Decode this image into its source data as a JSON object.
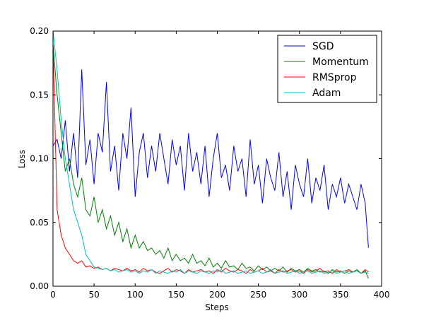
{
  "chart_data": {
    "type": "line",
    "title": "",
    "xlabel": "Steps",
    "ylabel": "Loss",
    "xlim": [
      0,
      400
    ],
    "ylim": [
      0.0,
      0.2
    ],
    "x_ticks": [
      "0",
      "50",
      "100",
      "150",
      "200",
      "250",
      "300",
      "350",
      "400"
    ],
    "y_ticks": [
      "0.00",
      "0.05",
      "0.10",
      "0.15",
      "0.20"
    ],
    "grid": false,
    "legend_position": "top-right",
    "x_step": 5,
    "series": [
      {
        "name": "SGD",
        "color": "#0000ff",
        "x": [
          0,
          5,
          10,
          15,
          20,
          25,
          30,
          35,
          40,
          45,
          50,
          55,
          60,
          65,
          70,
          75,
          80,
          85,
          90,
          95,
          100,
          105,
          110,
          115,
          120,
          125,
          130,
          135,
          140,
          145,
          150,
          155,
          160,
          165,
          170,
          175,
          180,
          185,
          190,
          195,
          200,
          205,
          210,
          215,
          220,
          225,
          230,
          235,
          240,
          245,
          250,
          255,
          260,
          265,
          270,
          275,
          280,
          285,
          290,
          295,
          300,
          305,
          310,
          315,
          320,
          325,
          330,
          335,
          340,
          345,
          350,
          355,
          360,
          365,
          370,
          375,
          380,
          384
        ],
        "values": [
          0.11,
          0.115,
          0.1,
          0.13,
          0.09,
          0.12,
          0.085,
          0.17,
          0.095,
          0.115,
          0.08,
          0.12,
          0.105,
          0.16,
          0.09,
          0.11,
          0.075,
          0.12,
          0.1,
          0.14,
          0.07,
          0.105,
          0.12,
          0.085,
          0.11,
          0.09,
          0.12,
          0.1,
          0.08,
          0.115,
          0.095,
          0.11,
          0.075,
          0.12,
          0.09,
          0.105,
          0.08,
          0.11,
          0.07,
          0.1,
          0.12,
          0.085,
          0.095,
          0.075,
          0.11,
          0.09,
          0.1,
          0.07,
          0.115,
          0.08,
          0.095,
          0.065,
          0.1,
          0.085,
          0.075,
          0.105,
          0.07,
          0.09,
          0.06,
          0.095,
          0.08,
          0.07,
          0.1,
          0.065,
          0.085,
          0.075,
          0.095,
          0.06,
          0.08,
          0.07,
          0.085,
          0.065,
          0.08,
          0.07,
          0.06,
          0.08,
          0.065,
          0.03
        ]
      },
      {
        "name": "Momentum",
        "color": "#008000",
        "x": [
          0,
          5,
          10,
          15,
          20,
          25,
          30,
          35,
          40,
          45,
          50,
          55,
          60,
          65,
          70,
          75,
          80,
          85,
          90,
          95,
          100,
          105,
          110,
          115,
          120,
          125,
          130,
          135,
          140,
          145,
          150,
          155,
          160,
          165,
          170,
          175,
          180,
          185,
          190,
          195,
          200,
          205,
          210,
          215,
          220,
          225,
          230,
          235,
          240,
          245,
          250,
          255,
          260,
          265,
          270,
          275,
          280,
          285,
          290,
          295,
          300,
          305,
          310,
          315,
          320,
          325,
          330,
          335,
          340,
          345,
          350,
          355,
          360,
          365,
          370,
          375,
          380,
          384
        ],
        "values": [
          0.19,
          0.15,
          0.12,
          0.09,
          0.1,
          0.08,
          0.07,
          0.085,
          0.06,
          0.055,
          0.07,
          0.05,
          0.06,
          0.045,
          0.055,
          0.04,
          0.05,
          0.035,
          0.045,
          0.03,
          0.04,
          0.03,
          0.035,
          0.028,
          0.03,
          0.025,
          0.028,
          0.022,
          0.03,
          0.02,
          0.025,
          0.02,
          0.022,
          0.018,
          0.025,
          0.018,
          0.02,
          0.016,
          0.022,
          0.015,
          0.018,
          0.014,
          0.02,
          0.015,
          0.016,
          0.013,
          0.018,
          0.014,
          0.015,
          0.012,
          0.016,
          0.013,
          0.015,
          0.012,
          0.014,
          0.012,
          0.015,
          0.011,
          0.014,
          0.012,
          0.013,
          0.011,
          0.014,
          0.012,
          0.013,
          0.011,
          0.012,
          0.01,
          0.013,
          0.011,
          0.012,
          0.01,
          0.012,
          0.011,
          0.013,
          0.01,
          0.012,
          0.006
        ]
      },
      {
        "name": "RMSprop",
        "color": "#ff0000",
        "x": [
          0,
          5,
          10,
          15,
          20,
          25,
          30,
          35,
          40,
          45,
          50,
          55,
          60,
          65,
          70,
          75,
          80,
          85,
          90,
          95,
          100,
          105,
          110,
          115,
          120,
          125,
          130,
          135,
          140,
          145,
          150,
          155,
          160,
          165,
          170,
          175,
          180,
          185,
          190,
          195,
          200,
          205,
          210,
          215,
          220,
          225,
          230,
          235,
          240,
          245,
          250,
          255,
          260,
          265,
          270,
          275,
          280,
          285,
          290,
          295,
          300,
          305,
          310,
          315,
          320,
          325,
          330,
          335,
          340,
          345,
          350,
          355,
          360,
          365,
          370,
          375,
          380,
          384
        ],
        "values": [
          0.19,
          0.06,
          0.04,
          0.03,
          0.025,
          0.02,
          0.018,
          0.02,
          0.015,
          0.016,
          0.014,
          0.015,
          0.013,
          0.014,
          0.012,
          0.014,
          0.013,
          0.012,
          0.014,
          0.012,
          0.013,
          0.011,
          0.014,
          0.012,
          0.013,
          0.011,
          0.01,
          0.012,
          0.014,
          0.011,
          0.013,
          0.012,
          0.01,
          0.013,
          0.011,
          0.012,
          0.013,
          0.011,
          0.012,
          0.01,
          0.013,
          0.011,
          0.014,
          0.012,
          0.011,
          0.013,
          0.012,
          0.01,
          0.013,
          0.011,
          0.012,
          0.014,
          0.011,
          0.012,
          0.01,
          0.013,
          0.011,
          0.012,
          0.013,
          0.011,
          0.012,
          0.01,
          0.013,
          0.011,
          0.012,
          0.014,
          0.011,
          0.012,
          0.01,
          0.013,
          0.011,
          0.012,
          0.013,
          0.011,
          0.012,
          0.01,
          0.013,
          0.011
        ]
      },
      {
        "name": "Adam",
        "color": "#00bfbf",
        "x": [
          0,
          5,
          10,
          15,
          20,
          25,
          30,
          35,
          40,
          45,
          50,
          55,
          60,
          65,
          70,
          75,
          80,
          85,
          90,
          95,
          100,
          105,
          110,
          115,
          120,
          125,
          130,
          135,
          140,
          145,
          150,
          155,
          160,
          165,
          170,
          175,
          180,
          185,
          190,
          195,
          200,
          205,
          210,
          215,
          220,
          225,
          230,
          235,
          240,
          245,
          250,
          255,
          260,
          265,
          270,
          275,
          280,
          285,
          290,
          295,
          300,
          305,
          310,
          315,
          320,
          325,
          330,
          335,
          340,
          345,
          350,
          355,
          360,
          365,
          370,
          375,
          380,
          384
        ],
        "values": [
          0.2,
          0.17,
          0.13,
          0.1,
          0.08,
          0.06,
          0.05,
          0.04,
          0.025,
          0.02,
          0.015,
          0.014,
          0.013,
          0.014,
          0.012,
          0.013,
          0.011,
          0.012,
          0.013,
          0.011,
          0.012,
          0.01,
          0.012,
          0.011,
          0.013,
          0.01,
          0.012,
          0.011,
          0.01,
          0.012,
          0.011,
          0.013,
          0.01,
          0.012,
          0.011,
          0.01,
          0.012,
          0.011,
          0.01,
          0.012,
          0.011,
          0.013,
          0.01,
          0.011,
          0.012,
          0.01,
          0.011,
          0.012,
          0.01,
          0.011,
          0.012,
          0.01,
          0.011,
          0.013,
          0.01,
          0.011,
          0.012,
          0.01,
          0.011,
          0.012,
          0.01,
          0.011,
          0.012,
          0.01,
          0.011,
          0.012,
          0.01,
          0.011,
          0.012,
          0.01,
          0.011,
          0.012,
          0.01,
          0.011,
          0.012,
          0.01,
          0.011,
          0.01
        ]
      }
    ]
  }
}
